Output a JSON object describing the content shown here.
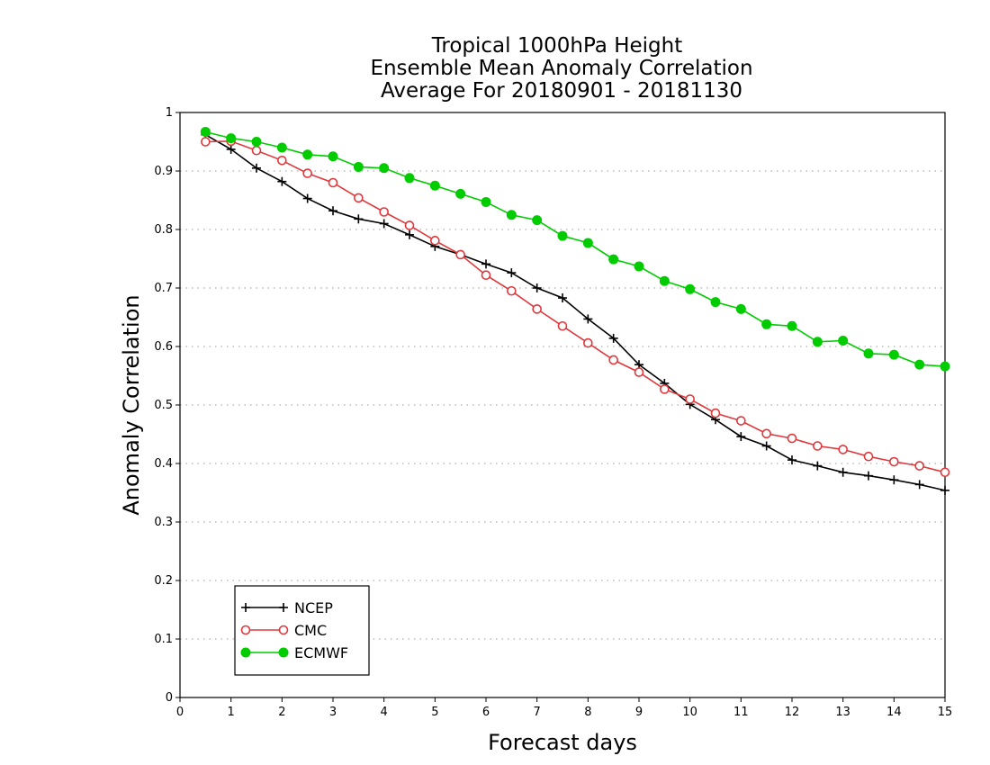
{
  "chart_data": {
    "type": "line",
    "title_lines": [
      "Tropical 1000hPa Height",
      "Ensemble Mean Anomaly Correlation",
      "Average For 20180901 - 20181130"
    ],
    "xlabel": "Forecast days",
    "ylabel": "Anomaly Correlation",
    "xlim": [
      0,
      15
    ],
    "ylim": [
      0,
      1
    ],
    "x_ticks": [
      "0",
      "1",
      "2",
      "3",
      "4",
      "5",
      "6",
      "7",
      "8",
      "9",
      "10",
      "11",
      "12",
      "13",
      "14",
      "15"
    ],
    "y_ticks": [
      "0",
      "0.1",
      "0.2",
      "0.3",
      "0.4",
      "0.5",
      "0.6",
      "0.7",
      "0.8",
      "0.9",
      "1"
    ],
    "grid": "horizontal dotted",
    "legend_position": "bottom-left",
    "x": [
      0.5,
      1,
      1.5,
      2,
      2.5,
      3,
      3.5,
      4,
      4.5,
      5,
      5.5,
      6,
      6.5,
      7,
      7.5,
      8,
      8.5,
      9,
      9.5,
      10,
      10.5,
      11,
      11.5,
      12,
      12.5,
      13,
      13.5,
      14,
      14.5,
      15
    ],
    "series": [
      {
        "name": "NCEP",
        "color": "#000000",
        "marker": "plus",
        "values": [
          0.962,
          0.937,
          0.905,
          0.882,
          0.853,
          0.832,
          0.818,
          0.81,
          0.791,
          0.771,
          0.757,
          0.741,
          0.726,
          0.7,
          0.683,
          0.647,
          0.614,
          0.569,
          0.537,
          0.501,
          0.475,
          0.446,
          0.43,
          0.406,
          0.396,
          0.385,
          0.379,
          0.372,
          0.364,
          0.354
        ]
      },
      {
        "name": "CMC",
        "color": "#e0383c",
        "marker": "open-circle",
        "values": [
          0.95,
          0.951,
          0.935,
          0.918,
          0.896,
          0.88,
          0.854,
          0.83,
          0.807,
          0.781,
          0.757,
          0.722,
          0.695,
          0.664,
          0.635,
          0.606,
          0.577,
          0.556,
          0.527,
          0.51,
          0.486,
          0.473,
          0.451,
          0.443,
          0.43,
          0.424,
          0.412,
          0.403,
          0.396,
          0.385
        ]
      },
      {
        "name": "ECMWF",
        "color": "#00cc00",
        "marker": "filled-circle",
        "values": [
          0.967,
          0.956,
          0.95,
          0.94,
          0.928,
          0.925,
          0.907,
          0.905,
          0.888,
          0.875,
          0.861,
          0.847,
          0.825,
          0.816,
          0.789,
          0.777,
          0.749,
          0.737,
          0.712,
          0.698,
          0.676,
          0.664,
          0.638,
          0.635,
          0.608,
          0.61,
          0.588,
          0.586,
          0.569,
          0.566
        ]
      }
    ]
  }
}
